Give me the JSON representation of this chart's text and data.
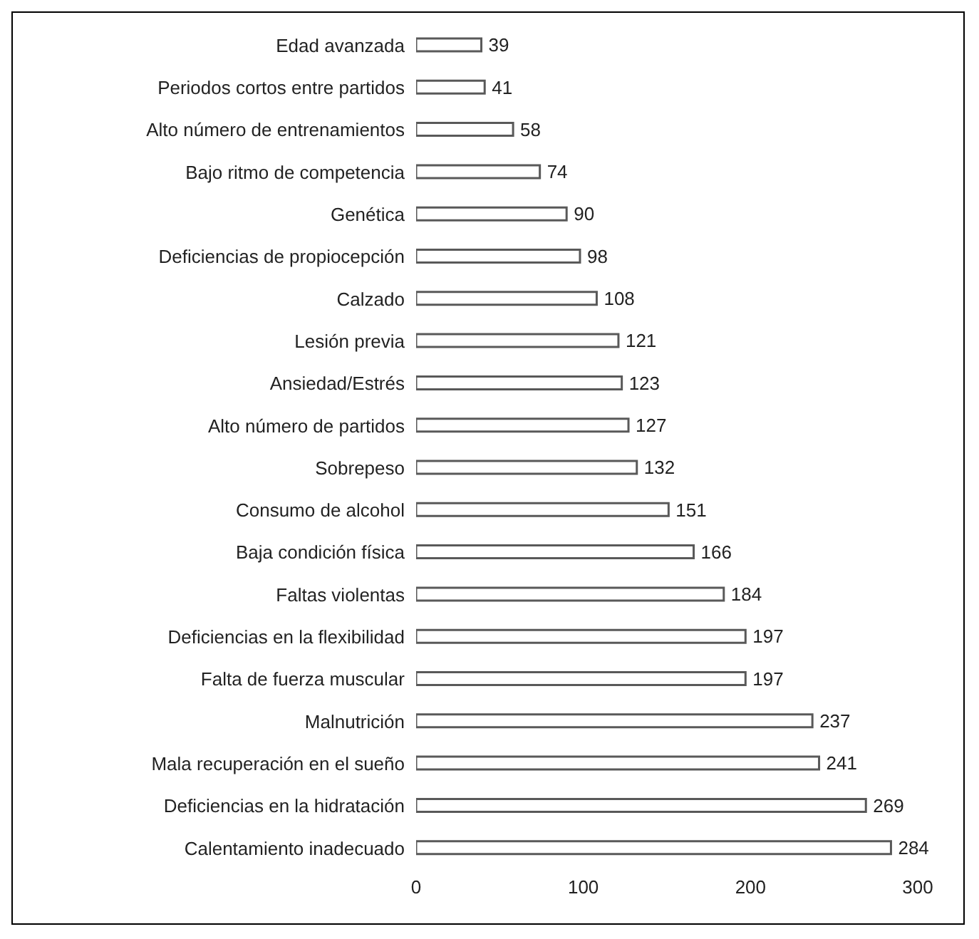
{
  "chart_data": {
    "type": "bar",
    "orientation": "horizontal",
    "categories": [
      "Edad avanzada",
      "Periodos cortos entre partidos",
      "Alto número de entrenamientos",
      "Bajo ritmo de competencia",
      "Genética",
      "Deficiencias de propiocepción",
      "Calzado",
      "Lesión previa",
      "Ansiedad/Estrés",
      "Alto número de partidos",
      "Sobrepeso",
      "Consumo de alcohol",
      "Baja condición física",
      "Faltas violentas",
      "Deficiencias en la flexibilidad",
      "Falta de fuerza muscular",
      "Malnutrición",
      "Mala recuperación en el sueño",
      "Deficiencias en la hidratación",
      "Calentamiento inadecuado"
    ],
    "values": [
      39,
      41,
      58,
      74,
      90,
      98,
      108,
      121,
      123,
      127,
      132,
      151,
      166,
      184,
      197,
      197,
      237,
      241,
      269,
      284
    ],
    "color": "#595959",
    "xlim": [
      0,
      300
    ],
    "xticks": [
      0,
      100,
      200,
      300
    ],
    "data_labels": true
  }
}
